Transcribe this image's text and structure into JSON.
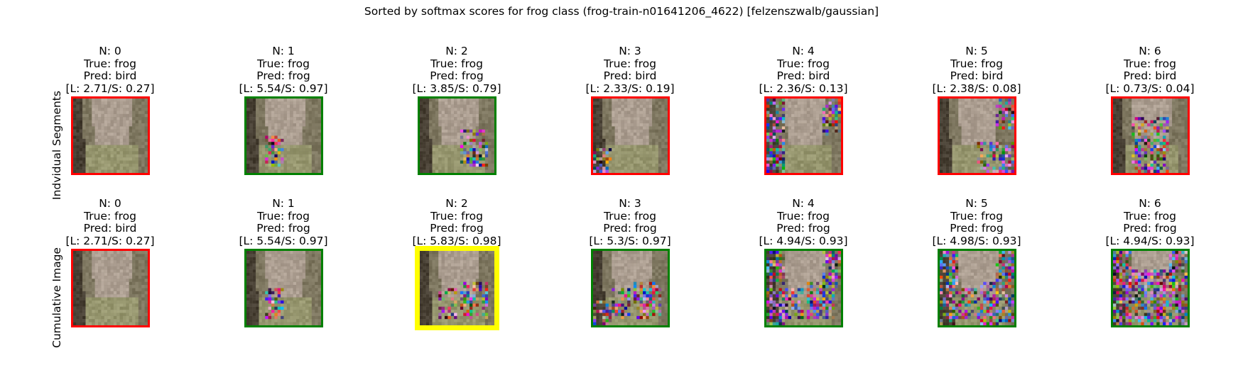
{
  "title": "Sorted by softmax scores for frog class (frog-train-n01641206_4622) [felzenszwalb/gaussian]",
  "row_labels": [
    "Indvidual Segments",
    "Cumulative Image"
  ],
  "colors": {
    "correct": "#008000",
    "wrong": "#ff0000",
    "best": "#ffff00"
  },
  "chart_data": {
    "type": "image-grid",
    "title": "Sorted by softmax scores for frog class (frog-train-n01641206_4622) [felzenszwalb/gaussian]",
    "rows": [
      {
        "label": "Indvidual Segments",
        "cells": [
          {
            "n": "N: 0",
            "true": "True: frog",
            "pred": "Pred: bird",
            "scores": "[L: 2.71/S: 0.27]",
            "logit": 2.71,
            "softmax": 0.27,
            "border": "wrong"
          },
          {
            "n": "N: 1",
            "true": "True: frog",
            "pred": "Pred: frog",
            "scores": "[L: 5.54/S: 0.97]",
            "logit": 5.54,
            "softmax": 0.97,
            "border": "correct"
          },
          {
            "n": "N: 2",
            "true": "True: frog",
            "pred": "Pred: frog",
            "scores": "[L: 3.85/S: 0.79]",
            "logit": 3.85,
            "softmax": 0.79,
            "border": "correct"
          },
          {
            "n": "N: 3",
            "true": "True: frog",
            "pred": "Pred: bird",
            "scores": "[L: 2.33/S: 0.19]",
            "logit": 2.33,
            "softmax": 0.19,
            "border": "wrong"
          },
          {
            "n": "N: 4",
            "true": "True: frog",
            "pred": "Pred: bird",
            "scores": "[L: 2.36/S: 0.13]",
            "logit": 2.36,
            "softmax": 0.13,
            "border": "wrong"
          },
          {
            "n": "N: 5",
            "true": "True: frog",
            "pred": "Pred: bird",
            "scores": "[L: 2.38/S: 0.08]",
            "logit": 2.38,
            "softmax": 0.08,
            "border": "wrong"
          },
          {
            "n": "N: 6",
            "true": "True: frog",
            "pred": "Pred: bird",
            "scores": "[L: 0.73/S: 0.04]",
            "logit": 0.73,
            "softmax": 0.04,
            "border": "wrong"
          }
        ]
      },
      {
        "label": "Cumulative Image",
        "cells": [
          {
            "n": "N: 0",
            "true": "True: frog",
            "pred": "Pred: bird",
            "scores": "[L: 2.71/S: 0.27]",
            "logit": 2.71,
            "softmax": 0.27,
            "border": "wrong"
          },
          {
            "n": "N: 1",
            "true": "True: frog",
            "pred": "Pred: frog",
            "scores": "[L: 5.54/S: 0.97]",
            "logit": 5.54,
            "softmax": 0.97,
            "border": "correct"
          },
          {
            "n": "N: 2",
            "true": "True: frog",
            "pred": "Pred: frog",
            "scores": "[L: 5.83/S: 0.98]",
            "logit": 5.83,
            "softmax": 0.98,
            "border": "best"
          },
          {
            "n": "N: 3",
            "true": "True: frog",
            "pred": "Pred: frog",
            "scores": "[L: 5.3/S: 0.97]",
            "logit": 5.3,
            "softmax": 0.97,
            "border": "correct"
          },
          {
            "n": "N: 4",
            "true": "True: frog",
            "pred": "Pred: frog",
            "scores": "[L: 4.94/S: 0.93]",
            "logit": 4.94,
            "softmax": 0.93,
            "border": "correct"
          },
          {
            "n": "N: 5",
            "true": "True: frog",
            "pred": "Pred: frog",
            "scores": "[L: 4.98/S: 0.93]",
            "logit": 4.98,
            "softmax": 0.93,
            "border": "correct"
          },
          {
            "n": "N: 6",
            "true": "True: frog",
            "pred": "Pred: frog",
            "scores": "[L: 4.94/S: 0.93]",
            "logit": 4.94,
            "softmax": 0.93,
            "border": "correct"
          }
        ]
      }
    ]
  }
}
